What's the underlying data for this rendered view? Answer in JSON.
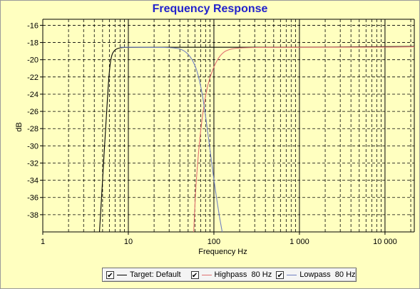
{
  "chart_data": {
    "type": "line",
    "title": "Frequency Response",
    "xlabel": "Frequency Hz",
    "ylabel": "dB",
    "x_scale": "log",
    "xlim": [
      1,
      22000
    ],
    "ylim": [
      -40,
      -15.3
    ],
    "x_tick_labels": [
      {
        "value": 1,
        "label": "1"
      },
      {
        "value": 10,
        "label": "10"
      },
      {
        "value": 100,
        "label": "100"
      },
      {
        "value": 1000,
        "label": "1 000"
      },
      {
        "value": 10000,
        "label": "10 000"
      }
    ],
    "y_ticks": [
      -16,
      -18,
      -20,
      -22,
      -24,
      -26,
      -28,
      -30,
      -32,
      -34,
      -36,
      -38
    ],
    "grid": true,
    "legend_position": "bottom",
    "series": [
      {
        "name": "Target: Default",
        "color": "#000000",
        "points": [
          [
            4.6,
            -40
          ],
          [
            5.0,
            -34
          ],
          [
            5.5,
            -27
          ],
          [
            5.9,
            -22
          ],
          [
            6.3,
            -19.5
          ],
          [
            7.0,
            -18.8
          ],
          [
            8.0,
            -18.6
          ],
          [
            10,
            -18.55
          ],
          [
            100,
            -18.55
          ],
          [
            1000,
            -18.55
          ],
          [
            6000,
            -18.5
          ],
          [
            22000,
            -18.45
          ]
        ]
      },
      {
        "name": "Highpass  80 Hz",
        "color": "#e07070",
        "points": [
          [
            58,
            -40
          ],
          [
            62,
            -34
          ],
          [
            70,
            -28
          ],
          [
            80,
            -24
          ],
          [
            90,
            -22
          ],
          [
            105,
            -20.3
          ],
          [
            125,
            -19.2
          ],
          [
            150,
            -18.8
          ],
          [
            200,
            -18.6
          ],
          [
            500,
            -18.55
          ],
          [
            6000,
            -18.55
          ],
          [
            22000,
            -18.5
          ]
        ]
      },
      {
        "name": "Lowpass  80 Hz",
        "color": "#7080c0",
        "points": [
          [
            8,
            -18.55
          ],
          [
            20,
            -18.55
          ],
          [
            35,
            -18.6
          ],
          [
            45,
            -18.9
          ],
          [
            55,
            -19.8
          ],
          [
            65,
            -21.5
          ],
          [
            75,
            -24.5
          ],
          [
            85,
            -28.5
          ],
          [
            100,
            -34
          ],
          [
            115,
            -38
          ],
          [
            125,
            -40
          ]
        ]
      }
    ]
  },
  "legend": {
    "check_mark": "✔",
    "items": [
      "Target: Default",
      "Highpass  80 Hz",
      "Lowpass  80 Hz"
    ]
  }
}
